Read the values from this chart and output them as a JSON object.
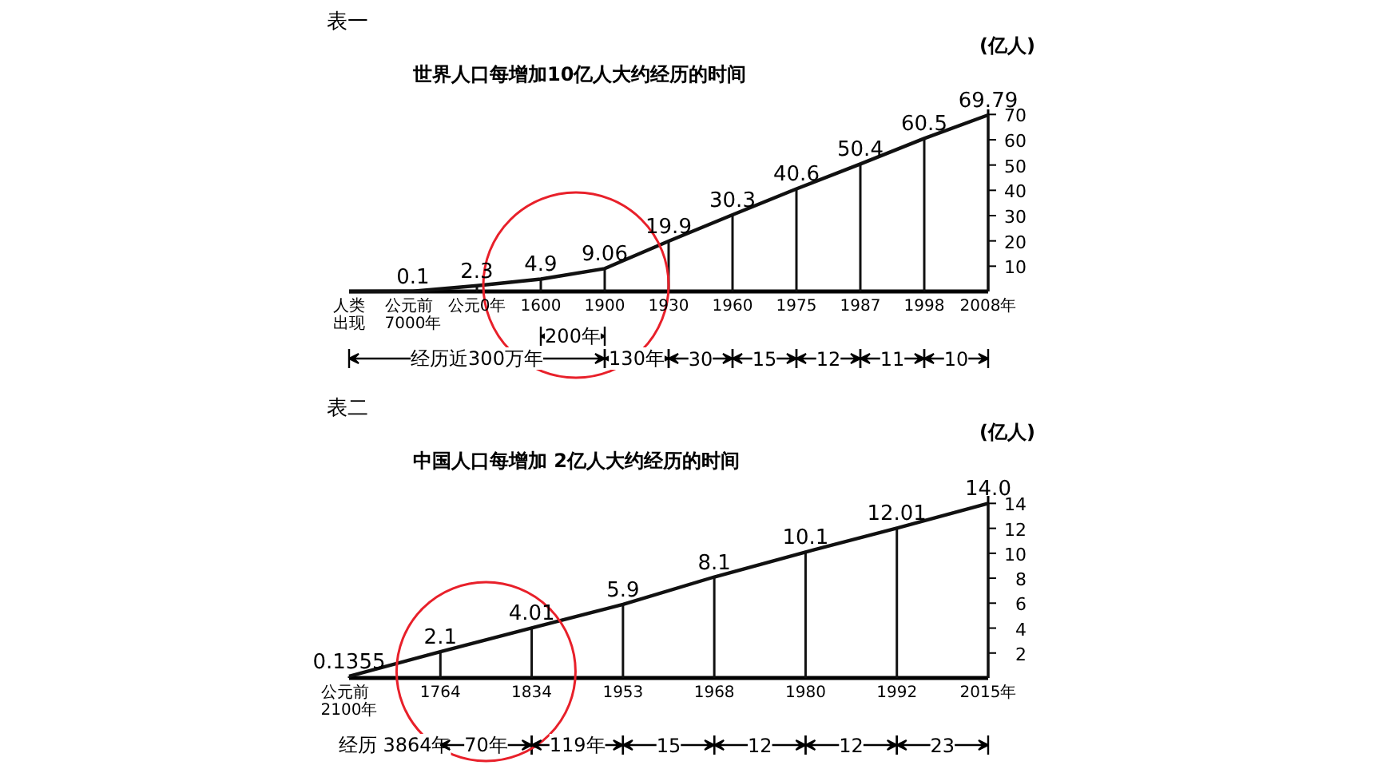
{
  "chart_data": [
    {
      "type": "line",
      "title": "世界人口每增加10亿人大约经历的时间",
      "ylabel": "(亿人)",
      "categories": [
        "人类出现",
        "公元前7000年",
        "公元0年",
        "1600",
        "1900",
        "1930",
        "1960",
        "1975",
        "1987",
        "1998",
        "2008年"
      ],
      "series": [
        {
          "color": "#111111",
          "values": [
            0,
            0.1,
            2.3,
            4.9,
            9.06,
            19.9,
            30.3,
            40.6,
            50.4,
            60.5,
            69.79
          ],
          "value_labels": [
            null,
            "0.1",
            "2.3",
            "4.9",
            "9.06",
            "19.9",
            "30.3",
            "40.6",
            "50.4",
            "60.5",
            "69.79"
          ]
        }
      ],
      "ylim": [
        0,
        72
      ],
      "yticks": [
        10,
        20,
        30,
        40,
        50,
        60,
        70
      ],
      "annotations": [
        "表一",
        "经历近300万年",
        "200年",
        "130年",
        "30",
        "15",
        "12",
        "11",
        "10"
      ]
    },
    {
      "type": "line",
      "title": "中国人口每增加 2亿人大约经历的时间",
      "ylabel": "(亿人)",
      "categories": [
        "公元前 2100年",
        "1764",
        "1834",
        "1953",
        "1968",
        "1980",
        "1992",
        "2015年"
      ],
      "series": [
        {
          "color": "#111111",
          "values": [
            0.1355,
            2.1,
            4.01,
            5.9,
            8.1,
            10.1,
            12.01,
            14.0
          ],
          "value_labels": [
            "0.1355",
            "2.1",
            "4.01",
            "5.9",
            "8.1",
            "10.1",
            "12.01",
            "14.0"
          ]
        }
      ],
      "ylim": [
        0,
        14.6
      ],
      "yticks": [
        2,
        4,
        6,
        8,
        10,
        12,
        14
      ],
      "annotations": [
        "表二",
        "经历 3864年",
        "70年",
        "119年",
        "15",
        "12",
        "12",
        "23"
      ]
    }
  ]
}
